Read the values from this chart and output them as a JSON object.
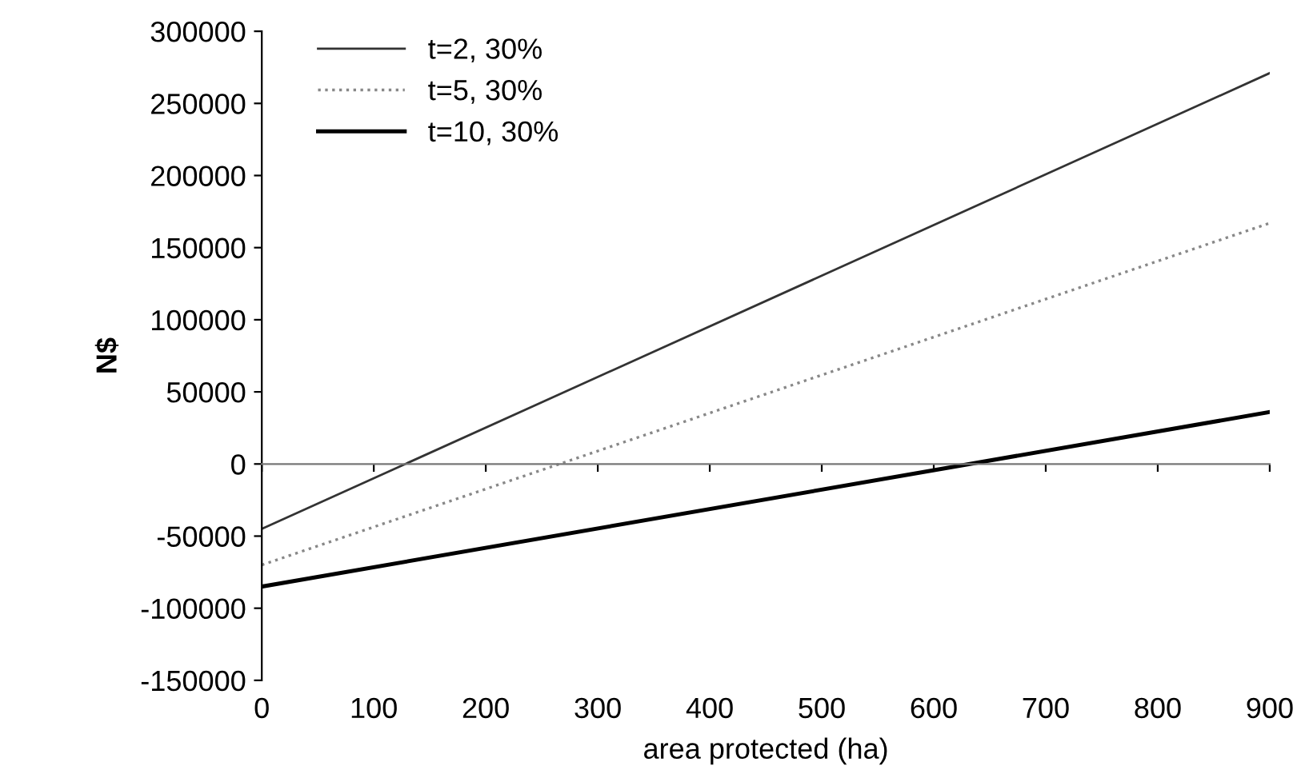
{
  "chart_data": {
    "type": "line",
    "xlabel": "area protected (ha)",
    "ylabel": "N$",
    "x": [
      0,
      900
    ],
    "series": [
      {
        "name": "t=2, 30%",
        "color": "#333333",
        "line_style": "solid",
        "values": [
          -45000,
          271000
        ]
      },
      {
        "name": "t=5, 30%",
        "color": "#888888",
        "line_style": "dotted",
        "values": [
          -70000,
          167000
        ]
      },
      {
        "name": "t=10, 30%",
        "color": "#000000",
        "line_style": "solid",
        "values": [
          -85000,
          36000
        ]
      }
    ],
    "xlim": [
      0,
      900
    ],
    "xticks": [
      0,
      100,
      200,
      300,
      400,
      500,
      600,
      700,
      800,
      900
    ],
    "ylim": [
      -150000,
      300000
    ],
    "yticks": [
      -150000,
      -100000,
      -50000,
      0,
      50000,
      100000,
      150000,
      200000,
      250000,
      300000
    ],
    "legend": "top left",
    "marker": "none"
  }
}
